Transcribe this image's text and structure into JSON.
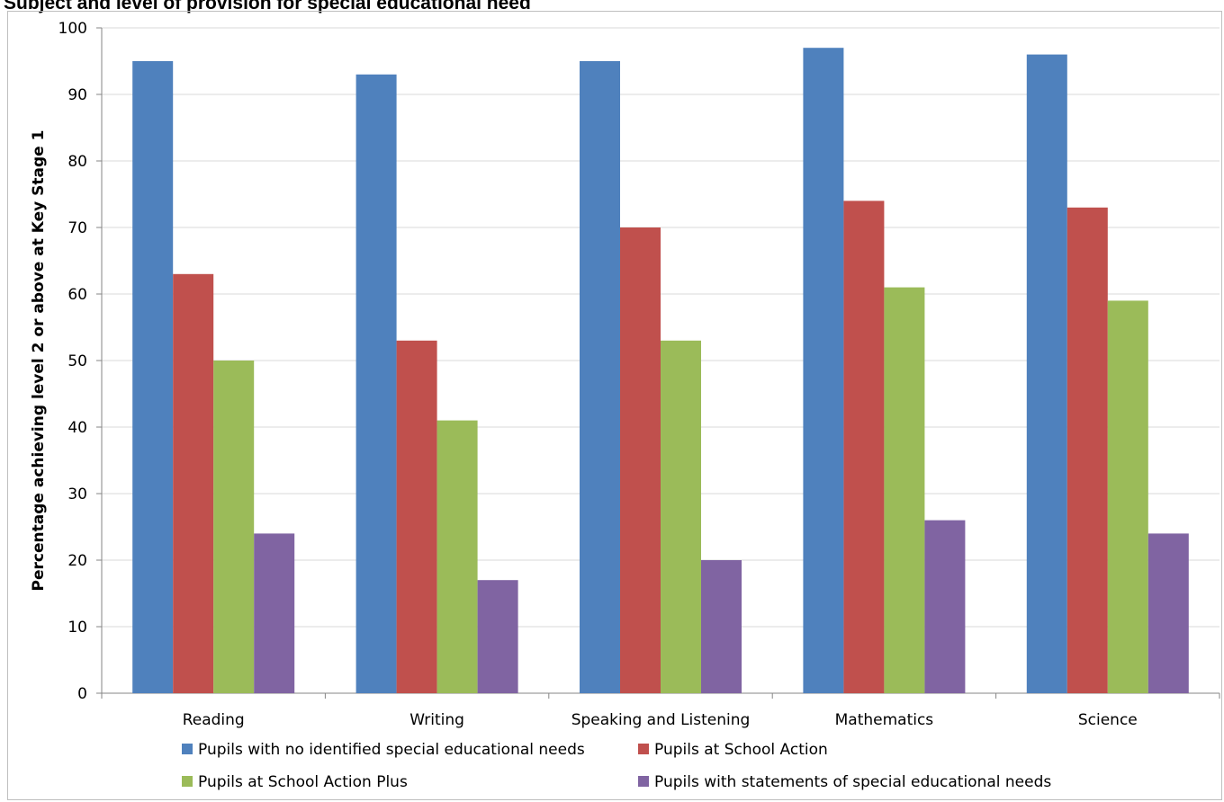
{
  "title": "Subject and level of provision for special educational need",
  "chart_data": {
    "type": "bar",
    "title": "Subject and level of provision for special educational need",
    "xlabel": "",
    "ylabel": "Percentage achieving level 2 or above at Key Stage 1",
    "ylim": [
      0,
      100
    ],
    "yticks": [
      0,
      10,
      20,
      30,
      40,
      50,
      60,
      70,
      80,
      90,
      100
    ],
    "grid": true,
    "legend_position": "bottom",
    "categories": [
      "Reading",
      "Writing",
      "Speaking and Listening",
      "Mathematics",
      "Science"
    ],
    "series": [
      {
        "name": "Pupils with no identified special educational needs",
        "color": "#4f81bd",
        "values": [
          95,
          93,
          95,
          97,
          96
        ]
      },
      {
        "name": "Pupils at School Action",
        "color": "#c0504d",
        "values": [
          63,
          53,
          70,
          74,
          73
        ]
      },
      {
        "name": "Pupils at School Action Plus",
        "color": "#9bbb59",
        "values": [
          50,
          41,
          53,
          61,
          59
        ]
      },
      {
        "name": "Pupils with statements of special educational needs",
        "color": "#8064a2",
        "values": [
          24,
          17,
          20,
          26,
          24
        ]
      }
    ]
  }
}
